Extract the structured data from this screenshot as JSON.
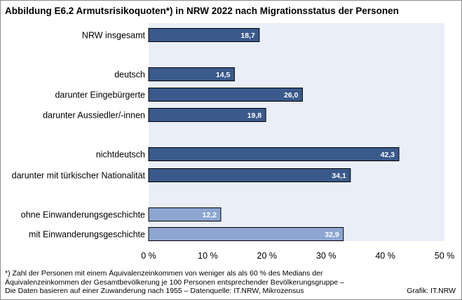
{
  "title": "Abbildung E6.2  Armutsrisikoquoten*) in NRW 2022 nach Migrationsstatus der Personen",
  "footnote": {
    "line1": "*) Zahl der Personen mit einem Äquivalenzeinkommen  von weniger als als 60 % des Medians  der",
    "line2": "Äquivalenzeinkommen  der Gesamtbevölkerung  je 100 Personen entsprechender Bevölkerungsgruppe  –",
    "line3": "Die Daten  basieren auf einer Zuwanderung nach 1955 – Datenquelle:  IT.NRW,  Mikrozensus"
  },
  "credit": "Grafik: IT.NRW",
  "colors": {
    "plot_background": "#eaeff7",
    "bar_dark": "#3a5a8c",
    "bar_light": "#8da6d1",
    "bar_outline": "#000000"
  },
  "chart_data": {
    "type": "bar",
    "orientation": "horizontal",
    "categories": [
      "NRW insgesamt",
      "deutsch",
      "darunter Eingebürgerte",
      "darunter Aussiedler/-innen",
      "nichtdeutsch",
      "darunter mit türkischer Nationalität",
      "ohne Einwanderungsgeschichte",
      "mit Einwanderungsgeschichte"
    ],
    "values": [
      18.7,
      14.5,
      26.0,
      19.8,
      42.3,
      34.1,
      12.2,
      32.9
    ],
    "value_labels": [
      "18,7",
      "14,5",
      "26,0",
      "19,8",
      "42,3",
      "34,1",
      "12,2",
      "32,9"
    ],
    "bar_color_keys": [
      "bar_dark",
      "bar_dark",
      "bar_dark",
      "bar_dark",
      "bar_dark",
      "bar_dark",
      "bar_light",
      "bar_light"
    ],
    "groups": [
      [
        0
      ],
      [
        1,
        2,
        3
      ],
      [
        4,
        5
      ],
      [
        6,
        7
      ]
    ],
    "xlim": [
      0,
      50
    ],
    "ticks": [
      0,
      10,
      20,
      30,
      40,
      50
    ],
    "tick_labels": [
      "0 %",
      "10 %",
      "20 %",
      "30 %",
      "40 %",
      "50 %"
    ],
    "grid": false,
    "legend": "none"
  }
}
